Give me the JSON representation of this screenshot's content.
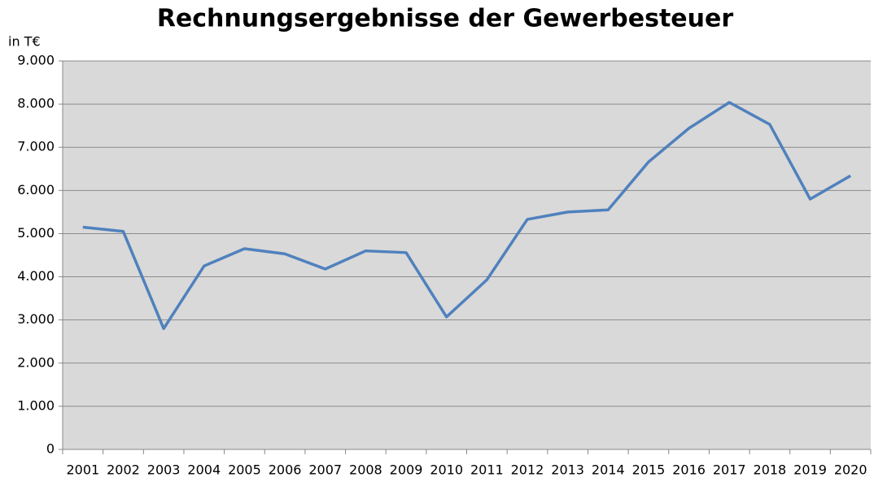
{
  "chart_data": {
    "type": "line",
    "title": "Rechnungsergebnisse der Gewerbesteuer",
    "y_label": "in T€",
    "categories": [
      "2001",
      "2002",
      "2003",
      "2004",
      "2005",
      "2006",
      "2007",
      "2008",
      "2009",
      "2010",
      "2011",
      "2012",
      "2013",
      "2014",
      "2015",
      "2016",
      "2017",
      "2018",
      "2019",
      "2020"
    ],
    "series": [
      {
        "name": "Gewerbesteuer",
        "color": "#4f81bd",
        "values": [
          5150,
          5050,
          2800,
          4250,
          4650,
          4530,
          4180,
          4600,
          4560,
          3070,
          3930,
          5330,
          5500,
          5550,
          6660,
          7440,
          8040,
          7530,
          5800,
          6340
        ]
      }
    ],
    "ylim": [
      0,
      9000
    ],
    "yticks": [
      {
        "value": 0,
        "label": "0"
      },
      {
        "value": 1000,
        "label": "1.000"
      },
      {
        "value": 2000,
        "label": "2.000"
      },
      {
        "value": 3000,
        "label": "3.000"
      },
      {
        "value": 4000,
        "label": "4.000"
      },
      {
        "value": 5000,
        "label": "5.000"
      },
      {
        "value": 6000,
        "label": "6.000"
      },
      {
        "value": 7000,
        "label": "7.000"
      },
      {
        "value": 8000,
        "label": "8.000"
      },
      {
        "value": 9000,
        "label": "9.000"
      }
    ],
    "grid": true
  }
}
